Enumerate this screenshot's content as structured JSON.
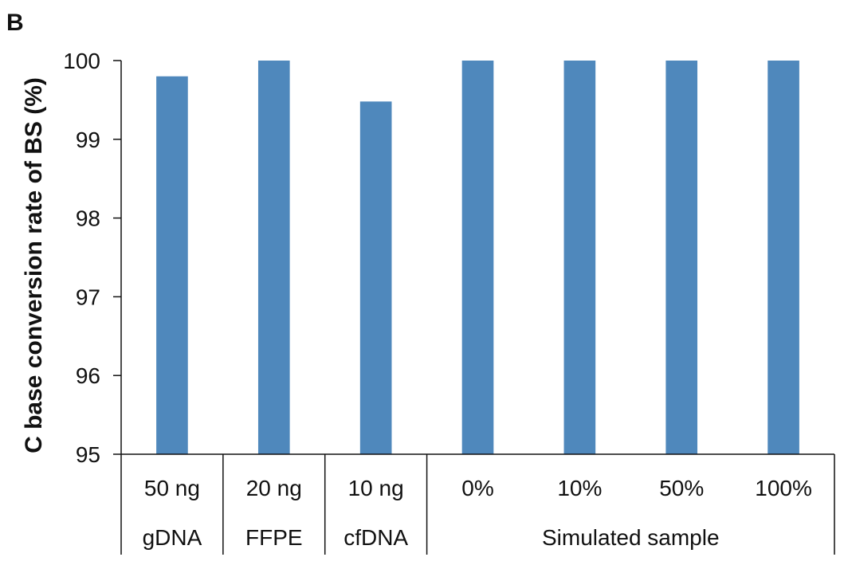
{
  "panel_label": "B",
  "chart_data": {
    "type": "bar",
    "title": "",
    "xlabel": "",
    "ylabel": "C base conversion rate of BS (%)",
    "ylim": [
      95,
      100
    ],
    "yticks": [
      95,
      96,
      97,
      98,
      99,
      100
    ],
    "grid": false,
    "bar_color": "#4f88bc",
    "categories": [
      "50 ng",
      "20 ng",
      "10 ng",
      "0%",
      "10%",
      "50%",
      "100%"
    ],
    "values": [
      99.8,
      100,
      99.48,
      100,
      100,
      100,
      100
    ],
    "groups": [
      {
        "label": "gDNA",
        "categories": [
          "50 ng"
        ]
      },
      {
        "label": "FFPE",
        "categories": [
          "20 ng"
        ]
      },
      {
        "label": "cfDNA",
        "categories": [
          "10 ng"
        ]
      },
      {
        "label": "Simulated sample",
        "categories": [
          "0%",
          "10%",
          "50%",
          "100%"
        ]
      }
    ]
  }
}
